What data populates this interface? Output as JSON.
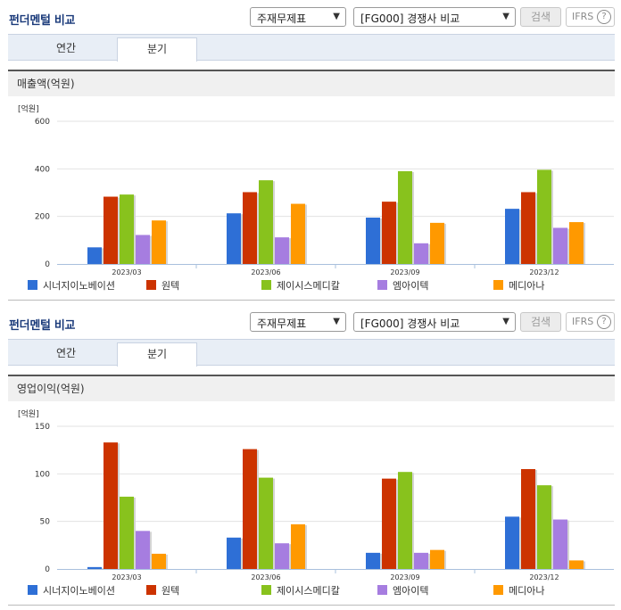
{
  "panels": [
    {
      "title": "펀더멘털 비교",
      "select1": "주재무제표",
      "select2": "[FG000] 경쟁사 비교",
      "search_label": "검색",
      "ifrs_label": "IFRS",
      "ifrs_help": "?",
      "tabs": [
        "연간",
        "분기"
      ],
      "active_tab": "분기",
      "subhead": "매출액(억원)"
    },
    {
      "title": "펀더멘털 비교",
      "select1": "주재무제표",
      "select2": "[FG000] 경쟁사 비교",
      "search_label": "검색",
      "ifrs_label": "IFRS",
      "ifrs_help": "?",
      "tabs": [
        "연간",
        "분기"
      ],
      "active_tab": "분기",
      "subhead": "영업이익(억원)"
    }
  ],
  "chart_data": [
    {
      "type": "bar",
      "unit_label": "[억원]",
      "categories": [
        "2023/03",
        "2023/06",
        "2023/09",
        "2023/12"
      ],
      "ylim": [
        0,
        600
      ],
      "yticks": [
        0,
        200,
        400,
        600
      ],
      "grid": true,
      "legend_position": "bottom",
      "series": [
        {
          "name": "시너지이노베이션",
          "color": "#2e6fd6",
          "values": [
            70,
            213,
            195,
            232
          ]
        },
        {
          "name": "원텍",
          "color": "#cc3300",
          "values": [
            283,
            302,
            262,
            302
          ]
        },
        {
          "name": "제이시스메디칼",
          "color": "#88c21d",
          "values": [
            292,
            352,
            390,
            396
          ]
        },
        {
          "name": "엠아이텍",
          "color": "#a67de0",
          "values": [
            122,
            112,
            87,
            152
          ]
        },
        {
          "name": "메디아나",
          "color": "#ff9900",
          "values": [
            183,
            253,
            173,
            176
          ]
        }
      ]
    },
    {
      "type": "bar",
      "unit_label": "[억원]",
      "categories": [
        "2023/03",
        "2023/06",
        "2023/09",
        "2023/12"
      ],
      "ylim": [
        0,
        150
      ],
      "yticks": [
        0,
        50,
        100,
        150
      ],
      "grid": true,
      "legend_position": "bottom",
      "series": [
        {
          "name": "시너지이노베이션",
          "color": "#2e6fd6",
          "values": [
            2,
            33,
            17,
            55
          ]
        },
        {
          "name": "원텍",
          "color": "#cc3300",
          "values": [
            133,
            126,
            95,
            105
          ]
        },
        {
          "name": "제이시스메디칼",
          "color": "#88c21d",
          "values": [
            76,
            96,
            102,
            88
          ]
        },
        {
          "name": "엠아이텍",
          "color": "#a67de0",
          "values": [
            40,
            27,
            17,
            52
          ]
        },
        {
          "name": "메디아나",
          "color": "#ff9900",
          "values": [
            16,
            47,
            20,
            9
          ]
        }
      ]
    }
  ]
}
